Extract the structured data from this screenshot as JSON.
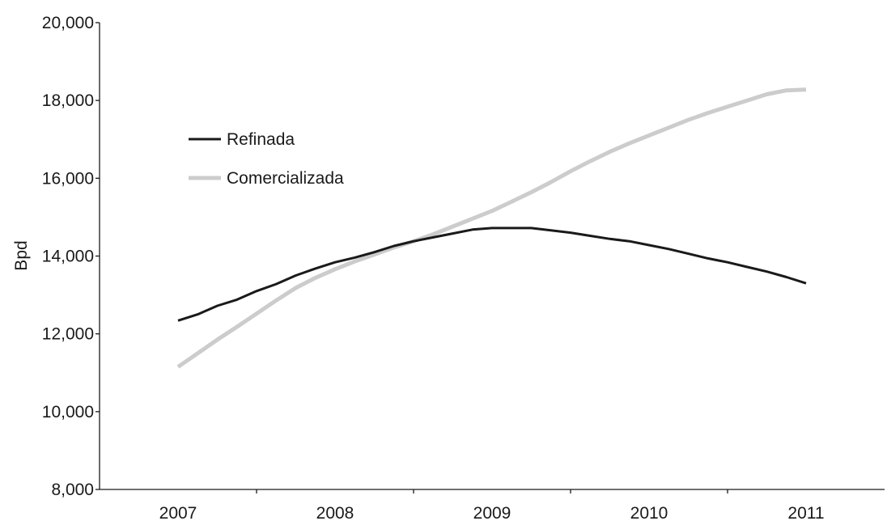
{
  "chart_data": {
    "type": "line",
    "title": "",
    "xlabel": "",
    "ylabel": "Bpd",
    "ylim": [
      8000,
      20000
    ],
    "xlim": [
      2006.5,
      2011.5
    ],
    "grid": false,
    "legend_position": "upper-left",
    "y_ticks": [
      {
        "value": 8000,
        "label": "8,000"
      },
      {
        "value": 10000,
        "label": "10,000"
      },
      {
        "value": 12000,
        "label": "12,000"
      },
      {
        "value": 14000,
        "label": "14,000"
      },
      {
        "value": 16000,
        "label": "16,000"
      },
      {
        "value": 18000,
        "label": "18,000"
      },
      {
        "value": 20000,
        "label": "20,000"
      }
    ],
    "x_ticks": [
      {
        "value": 2007,
        "label": "2007"
      },
      {
        "value": 2008,
        "label": "2008"
      },
      {
        "value": 2009,
        "label": "2009"
      },
      {
        "value": 2010,
        "label": "2010"
      },
      {
        "value": 2011,
        "label": "2011"
      }
    ],
    "series": [
      {
        "name": "Refinada",
        "color": "#1a1a1a",
        "x": [
          2007.0,
          2007.125,
          2007.25,
          2007.375,
          2007.5,
          2007.625,
          2007.75,
          2007.875,
          2008.0,
          2008.125,
          2008.25,
          2008.375,
          2008.5,
          2008.625,
          2008.75,
          2008.875,
          2009.0,
          2009.125,
          2009.25,
          2009.375,
          2009.5,
          2009.625,
          2009.75,
          2009.875,
          2010.0,
          2010.125,
          2010.25,
          2010.375,
          2010.5,
          2010.625,
          2010.75,
          2010.875,
          2011.0
        ],
        "y": [
          12340,
          12500,
          12720,
          12880,
          13100,
          13280,
          13500,
          13680,
          13840,
          13960,
          14100,
          14260,
          14380,
          14480,
          14580,
          14680,
          14720,
          14720,
          14720,
          14660,
          14600,
          14520,
          14440,
          14380,
          14280,
          14180,
          14060,
          13940,
          13840,
          13720,
          13600,
          13460,
          13300
        ]
      },
      {
        "name": "Comercializada",
        "color": "#cccccc",
        "x": [
          2007.0,
          2007.125,
          2007.25,
          2007.375,
          2007.5,
          2007.625,
          2007.75,
          2007.875,
          2008.0,
          2008.125,
          2008.25,
          2008.375,
          2008.5,
          2008.625,
          2008.75,
          2008.875,
          2009.0,
          2009.125,
          2009.25,
          2009.375,
          2009.5,
          2009.625,
          2009.75,
          2009.875,
          2010.0,
          2010.125,
          2010.25,
          2010.375,
          2010.5,
          2010.625,
          2010.75,
          2010.875,
          2011.0
        ],
        "y": [
          11150,
          11500,
          11850,
          12180,
          12520,
          12860,
          13180,
          13440,
          13660,
          13860,
          14040,
          14220,
          14380,
          14560,
          14760,
          14960,
          15160,
          15400,
          15640,
          15900,
          16180,
          16440,
          16680,
          16900,
          17100,
          17300,
          17500,
          17680,
          17840,
          18000,
          18160,
          18260,
          18280
        ]
      }
    ]
  }
}
